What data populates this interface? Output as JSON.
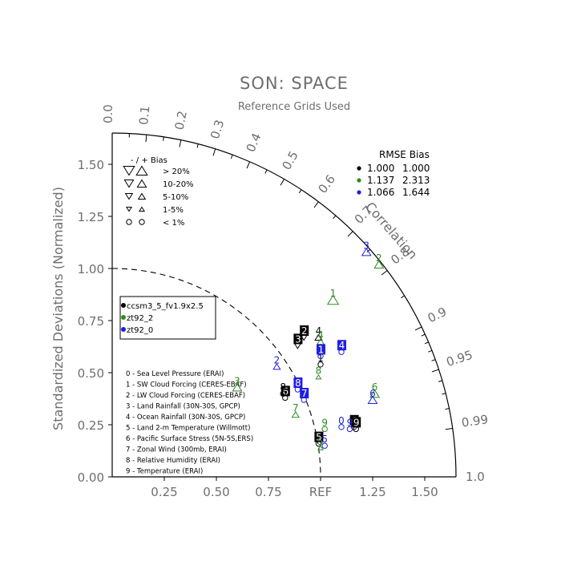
{
  "chart_data": {
    "type": "scatter",
    "subtype": "taylor-diagram",
    "title": "SON: SPACE",
    "subtitle": "Reference Grids Used",
    "ylabel": "Standardized Deviations (Normalized)",
    "angle_label": "Correlation",
    "ref_label": "REF",
    "x_ticks": [
      "0.25",
      "0.50",
      "0.75",
      "1.25",
      "1.50"
    ],
    "x_tick_values": [
      0.25,
      0.5,
      0.75,
      1.25,
      1.5
    ],
    "y_ticks": [
      "0.00",
      "0.25",
      "0.50",
      "0.75",
      "1.00",
      "1.25",
      "1.50"
    ],
    "y_tick_values": [
      0,
      0.25,
      0.5,
      0.75,
      1.0,
      1.25,
      1.5
    ],
    "corr_ticks": [
      {
        "label": "0.0",
        "value": 0.0
      },
      {
        "label": "0.1",
        "value": 0.1
      },
      {
        "label": "0.2",
        "value": 0.2
      },
      {
        "label": "0.3",
        "value": 0.3
      },
      {
        "label": "0.4",
        "value": 0.4
      },
      {
        "label": "0.5",
        "value": 0.5
      },
      {
        "label": "0.6",
        "value": 0.6
      },
      {
        "label": "0.7",
        "value": 0.7
      },
      {
        "label": "0.8",
        "value": 0.8
      },
      {
        "label": "0.9",
        "value": 0.9
      },
      {
        "label": "0.95",
        "value": 0.95
      },
      {
        "label": "0.99",
        "value": 0.99
      },
      {
        "label": "1.0",
        "value": 1.0
      }
    ],
    "corr_minor": [
      0.05,
      0.15,
      0.25,
      0.35,
      0.45,
      0.55,
      0.65,
      0.75,
      0.85,
      0.91,
      0.92,
      0.93,
      0.94,
      0.96,
      0.97,
      0.98
    ],
    "max_sd": 1.65,
    "ref_sd": 1.0,
    "colors": {
      "ccsm3_5_fv1.9x2.5": "#000000",
      "zt92_2": "#2e8b22",
      "zt92_0": "#1f1fe0",
      "axis": "#000000",
      "text": "#6e6e6e"
    },
    "bias_legend": {
      "header": "-  /  +     Bias",
      "rows": [
        "> 20%",
        "10-20%",
        "5-10%",
        "1-5%",
        "< 1%"
      ],
      "sizes": [
        11,
        9,
        7,
        5,
        0
      ]
    },
    "rmse_table": {
      "header": "RMSE  Bias",
      "rows": [
        {
          "color": "#000000",
          "rmse": "1.000",
          "bias": "1.000"
        },
        {
          "color": "#2e8b22",
          "rmse": "1.137",
          "bias": "2.313"
        },
        {
          "color": "#1f1fe0",
          "rmse": "1.066",
          "bias": "1.644"
        }
      ]
    },
    "legend": [
      "ccsm3_5_fv1.9x2.5",
      "zt92_2",
      "zt92_0"
    ],
    "variables": [
      "0 - Sea Level Pressure (ERAI)",
      "1 - SW Cloud Forcing (CERES-EBAF)",
      "2 - LW Cloud Forcing (CERES-EBAF)",
      "3 - Land Rainfall (30N-30S, GPCP)",
      "4 - Ocean Rainfall (30N-30S, GPCP)",
      "5 - Land 2-m Temperature (Willmott)",
      "6 - Pacific Surface Stress (5N-5S,ERS)",
      "7 - Zonal Wind (300mb, ERAI)",
      "8 - Relative Humidity (ERAI)",
      "9 - Temperature (ERAI)"
    ],
    "series": [
      {
        "name": "ccsm3_5_fv1.9x2.5",
        "points": [
          {
            "id": "0",
            "x": 1.16,
            "y": 0.27,
            "boxed": true,
            "bias_dir": "circle",
            "bias_size": 0
          },
          {
            "id": "1",
            "x": 1.0,
            "y": 0.57,
            "boxed": false,
            "bias_dir": "circle",
            "bias_size": 0
          },
          {
            "id": "2",
            "x": 0.92,
            "y": 0.7,
            "boxed": true,
            "bias_dir": "down",
            "bias_size": 7
          },
          {
            "id": "3",
            "x": 0.89,
            "y": 0.66,
            "boxed": true,
            "bias_dir": "down",
            "bias_size": 7
          },
          {
            "id": "4",
            "x": 0.99,
            "y": 0.7,
            "boxed": false,
            "bias_dir": "up",
            "bias_size": 7
          },
          {
            "id": "5",
            "x": 0.99,
            "y": 0.19,
            "boxed": true,
            "bias_dir": "circle",
            "bias_size": 0
          },
          {
            "id": "6",
            "x": 0.83,
            "y": 0.41,
            "boxed": true,
            "bias_dir": "circle",
            "bias_size": 0
          },
          {
            "id": "8",
            "x": 0.82,
            "y": 0.43,
            "boxed": false,
            "bias_dir": "circle",
            "bias_size": 0
          },
          {
            "id": "9",
            "x": 1.17,
            "y": 0.26,
            "boxed": true,
            "bias_dir": "circle",
            "bias_size": 0
          }
        ]
      },
      {
        "name": "zt92_2",
        "points": [
          {
            "id": "1",
            "x": 1.06,
            "y": 0.88,
            "boxed": false,
            "bias_dir": "up",
            "bias_size": 11
          },
          {
            "id": "2",
            "x": 1.28,
            "y": 1.05,
            "boxed": false,
            "bias_dir": "up",
            "bias_size": 9
          },
          {
            "id": "3",
            "x": 0.6,
            "y": 0.46,
            "boxed": false,
            "bias_dir": "up",
            "bias_size": 9
          },
          {
            "id": "4",
            "x": 1.0,
            "y": 0.68,
            "boxed": false,
            "bias_dir": "up",
            "bias_size": 7
          },
          {
            "id": "5",
            "x": 1.0,
            "y": 0.17,
            "boxed": false,
            "bias_dir": "up",
            "bias_size": 5
          },
          {
            "id": "6",
            "x": 1.26,
            "y": 0.43,
            "boxed": false,
            "bias_dir": "up",
            "bias_size": 9
          },
          {
            "id": "7",
            "x": 0.88,
            "y": 0.33,
            "boxed": false,
            "bias_dir": "up",
            "bias_size": 7
          },
          {
            "id": "8",
            "x": 0.99,
            "y": 0.51,
            "boxed": false,
            "bias_dir": "up",
            "bias_size": 5
          },
          {
            "id": "9",
            "x": 1.02,
            "y": 0.26,
            "boxed": false,
            "bias_dir": "circle",
            "bias_size": 0
          }
        ]
      },
      {
        "name": "zt92_0",
        "points": [
          {
            "id": "0",
            "x": 1.1,
            "y": 0.27,
            "boxed": false,
            "bias_dir": "circle",
            "bias_size": 0
          },
          {
            "id": "1",
            "x": 1.0,
            "y": 0.61,
            "boxed": true,
            "bias_dir": "circle",
            "bias_size": 0
          },
          {
            "id": "2",
            "x": 0.79,
            "y": 0.56,
            "boxed": false,
            "bias_dir": "up",
            "bias_size": 7
          },
          {
            "id": "3",
            "x": 1.22,
            "y": 1.11,
            "boxed": false,
            "bias_dir": "up",
            "bias_size": 9
          },
          {
            "id": "4",
            "x": 1.1,
            "y": 0.63,
            "boxed": true,
            "bias_dir": "circle",
            "bias_size": 0
          },
          {
            "id": "5",
            "x": 1.02,
            "y": 0.18,
            "boxed": false,
            "bias_dir": "circle",
            "bias_size": 0
          },
          {
            "id": "6",
            "x": 1.25,
            "y": 0.4,
            "boxed": false,
            "bias_dir": "up",
            "bias_size": 9
          },
          {
            "id": "7",
            "x": 0.92,
            "y": 0.4,
            "boxed": true,
            "bias_dir": "circle",
            "bias_size": 0
          },
          {
            "id": "8",
            "x": 0.89,
            "y": 0.45,
            "boxed": true,
            "bias_dir": "circle",
            "bias_size": 0
          },
          {
            "id": "9",
            "x": 1.14,
            "y": 0.26,
            "boxed": false,
            "bias_dir": "circle",
            "bias_size": 0
          }
        ]
      }
    ]
  }
}
